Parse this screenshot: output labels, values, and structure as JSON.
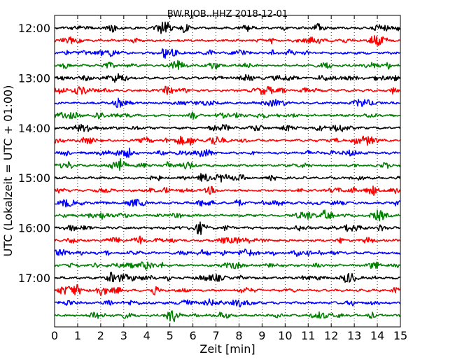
{
  "chart_data": {
    "type": "line",
    "title": "BW.RJOB..HHZ 2018-12-01",
    "xlabel": "Zeit  [min]",
    "ylabel": "UTC (Lokalzeit = UTC + 01:00)",
    "xlim": [
      0,
      15
    ],
    "x_ticks": [
      "0",
      "1",
      "2",
      "3",
      "4",
      "5",
      "6",
      "7",
      "8",
      "9",
      "10",
      "11",
      "12",
      "13",
      "14",
      "15"
    ],
    "y_tick_labels": [
      "12:00",
      "13:00",
      "14:00",
      "15:00",
      "16:00",
      "17:00"
    ],
    "grid": "vertical dotted at each minute",
    "trace_interval_min": 15,
    "trace_colors": [
      "#000000",
      "#ff0000",
      "#0000ff",
      "#008000"
    ],
    "series": [
      {
        "start": "12:00"
      },
      {
        "start": "12:15"
      },
      {
        "start": "12:30"
      },
      {
        "start": "12:45"
      },
      {
        "start": "13:00"
      },
      {
        "start": "13:15"
      },
      {
        "start": "13:30"
      },
      {
        "start": "13:45"
      },
      {
        "start": "14:00"
      },
      {
        "start": "14:15"
      },
      {
        "start": "14:30"
      },
      {
        "start": "14:45"
      },
      {
        "start": "15:00"
      },
      {
        "start": "15:15"
      },
      {
        "start": "15:30"
      },
      {
        "start": "15:45"
      },
      {
        "start": "16:00"
      },
      {
        "start": "16:15"
      },
      {
        "start": "16:30"
      },
      {
        "start": "16:45"
      },
      {
        "start": "17:00"
      },
      {
        "start": "17:15"
      },
      {
        "start": "17:30"
      },
      {
        "start": "17:45"
      }
    ]
  }
}
